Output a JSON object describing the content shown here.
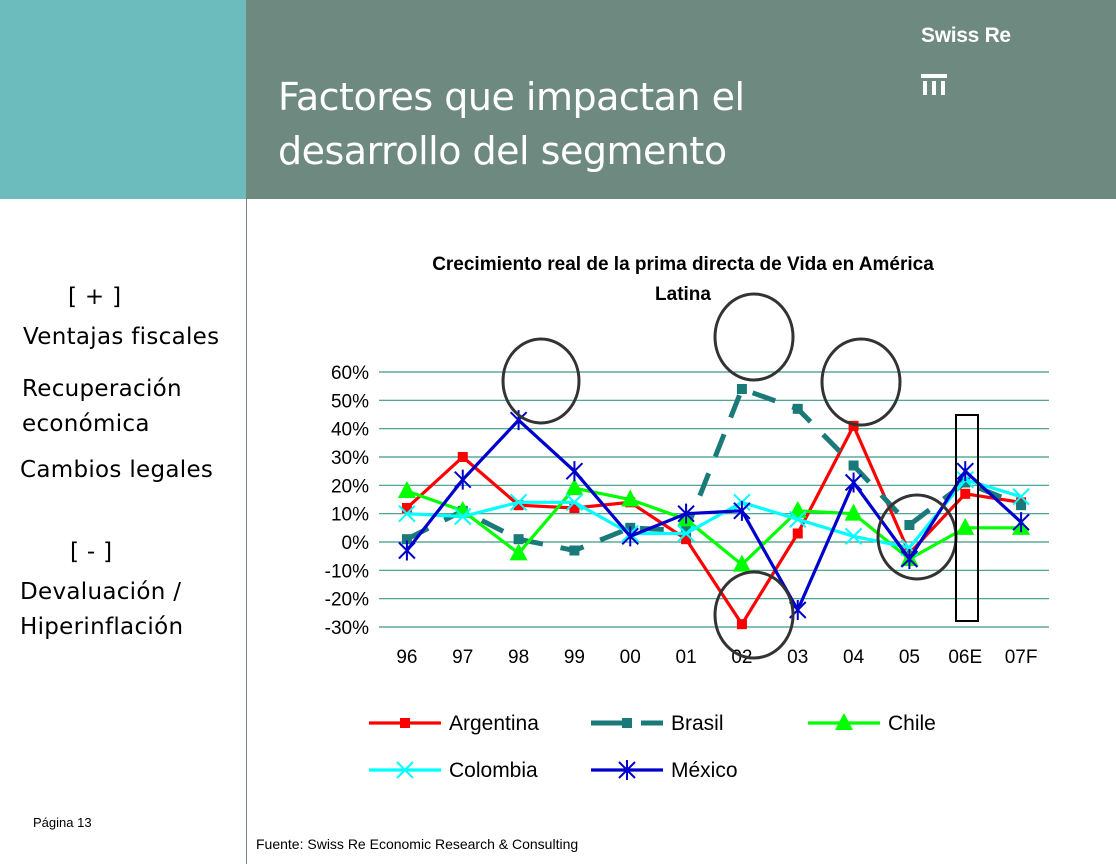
{
  "header": {
    "title_line1": "Factores que impactan el",
    "title_line2": "desarrollo del segmento",
    "brand": "Swiss Re"
  },
  "sidebar": {
    "plus_marker": "[ + ]",
    "factor1": "Ventajas fiscales",
    "factor2_line1": "Recuperación",
    "factor2_line2": "económica",
    "factor3": "Cambios legales",
    "minus_marker": "[ - ]",
    "factor4_line1": "Devaluación /",
    "factor4_line2": "Hiperinflación"
  },
  "footer": {
    "page": "Página 13",
    "source": "Fuente: Swiss Re Economic Research & Consulting"
  },
  "colors": {
    "header_band": "#6e8a80",
    "teal_block": "#6cbcbe",
    "gridline": "#3a9a8a"
  },
  "chart_data": {
    "type": "line",
    "title_line1": "Crecimiento real de la prima directa de Vida en  América",
    "title_line2": "Latina",
    "categories": [
      "96",
      "97",
      "98",
      "99",
      "00",
      "01",
      "02",
      "03",
      "04",
      "05",
      "06E",
      "07F"
    ],
    "yticks": [
      "60%",
      "50%",
      "40%",
      "30%",
      "20%",
      "10%",
      "0%",
      "-10%",
      "-20%",
      "-30%"
    ],
    "ylim": [
      -30,
      60
    ],
    "grid": true,
    "legend_position": "bottom",
    "series": [
      {
        "name": "Argentina",
        "color": "#ff0000",
        "marker": "square",
        "dash": false,
        "values": [
          12,
          30,
          13,
          12,
          14,
          1,
          -29,
          3,
          41,
          -4,
          17,
          14
        ]
      },
      {
        "name": "Brasil",
        "color": "#1a7a7a",
        "marker": "square",
        "dash": true,
        "values": [
          1,
          11,
          1,
          -3,
          5,
          4,
          54,
          47,
          27,
          6,
          21,
          13
        ]
      },
      {
        "name": "Chile",
        "color": "#00ff00",
        "marker": "triangle",
        "dash": false,
        "values": [
          18,
          11,
          -4,
          19,
          15,
          8,
          -8,
          11,
          10,
          -6,
          5,
          5
        ]
      },
      {
        "name": "Colombia",
        "color": "#00ffff",
        "marker": "x",
        "dash": false,
        "values": [
          10,
          9,
          14,
          14,
          3,
          3,
          14,
          8,
          2,
          -2,
          22,
          16
        ]
      },
      {
        "name": "México",
        "color": "#0000cc",
        "marker": "star",
        "dash": false,
        "values": [
          -3,
          22,
          43,
          25,
          2,
          10,
          11,
          -24,
          21,
          -6,
          25,
          7
        ]
      }
    ]
  }
}
